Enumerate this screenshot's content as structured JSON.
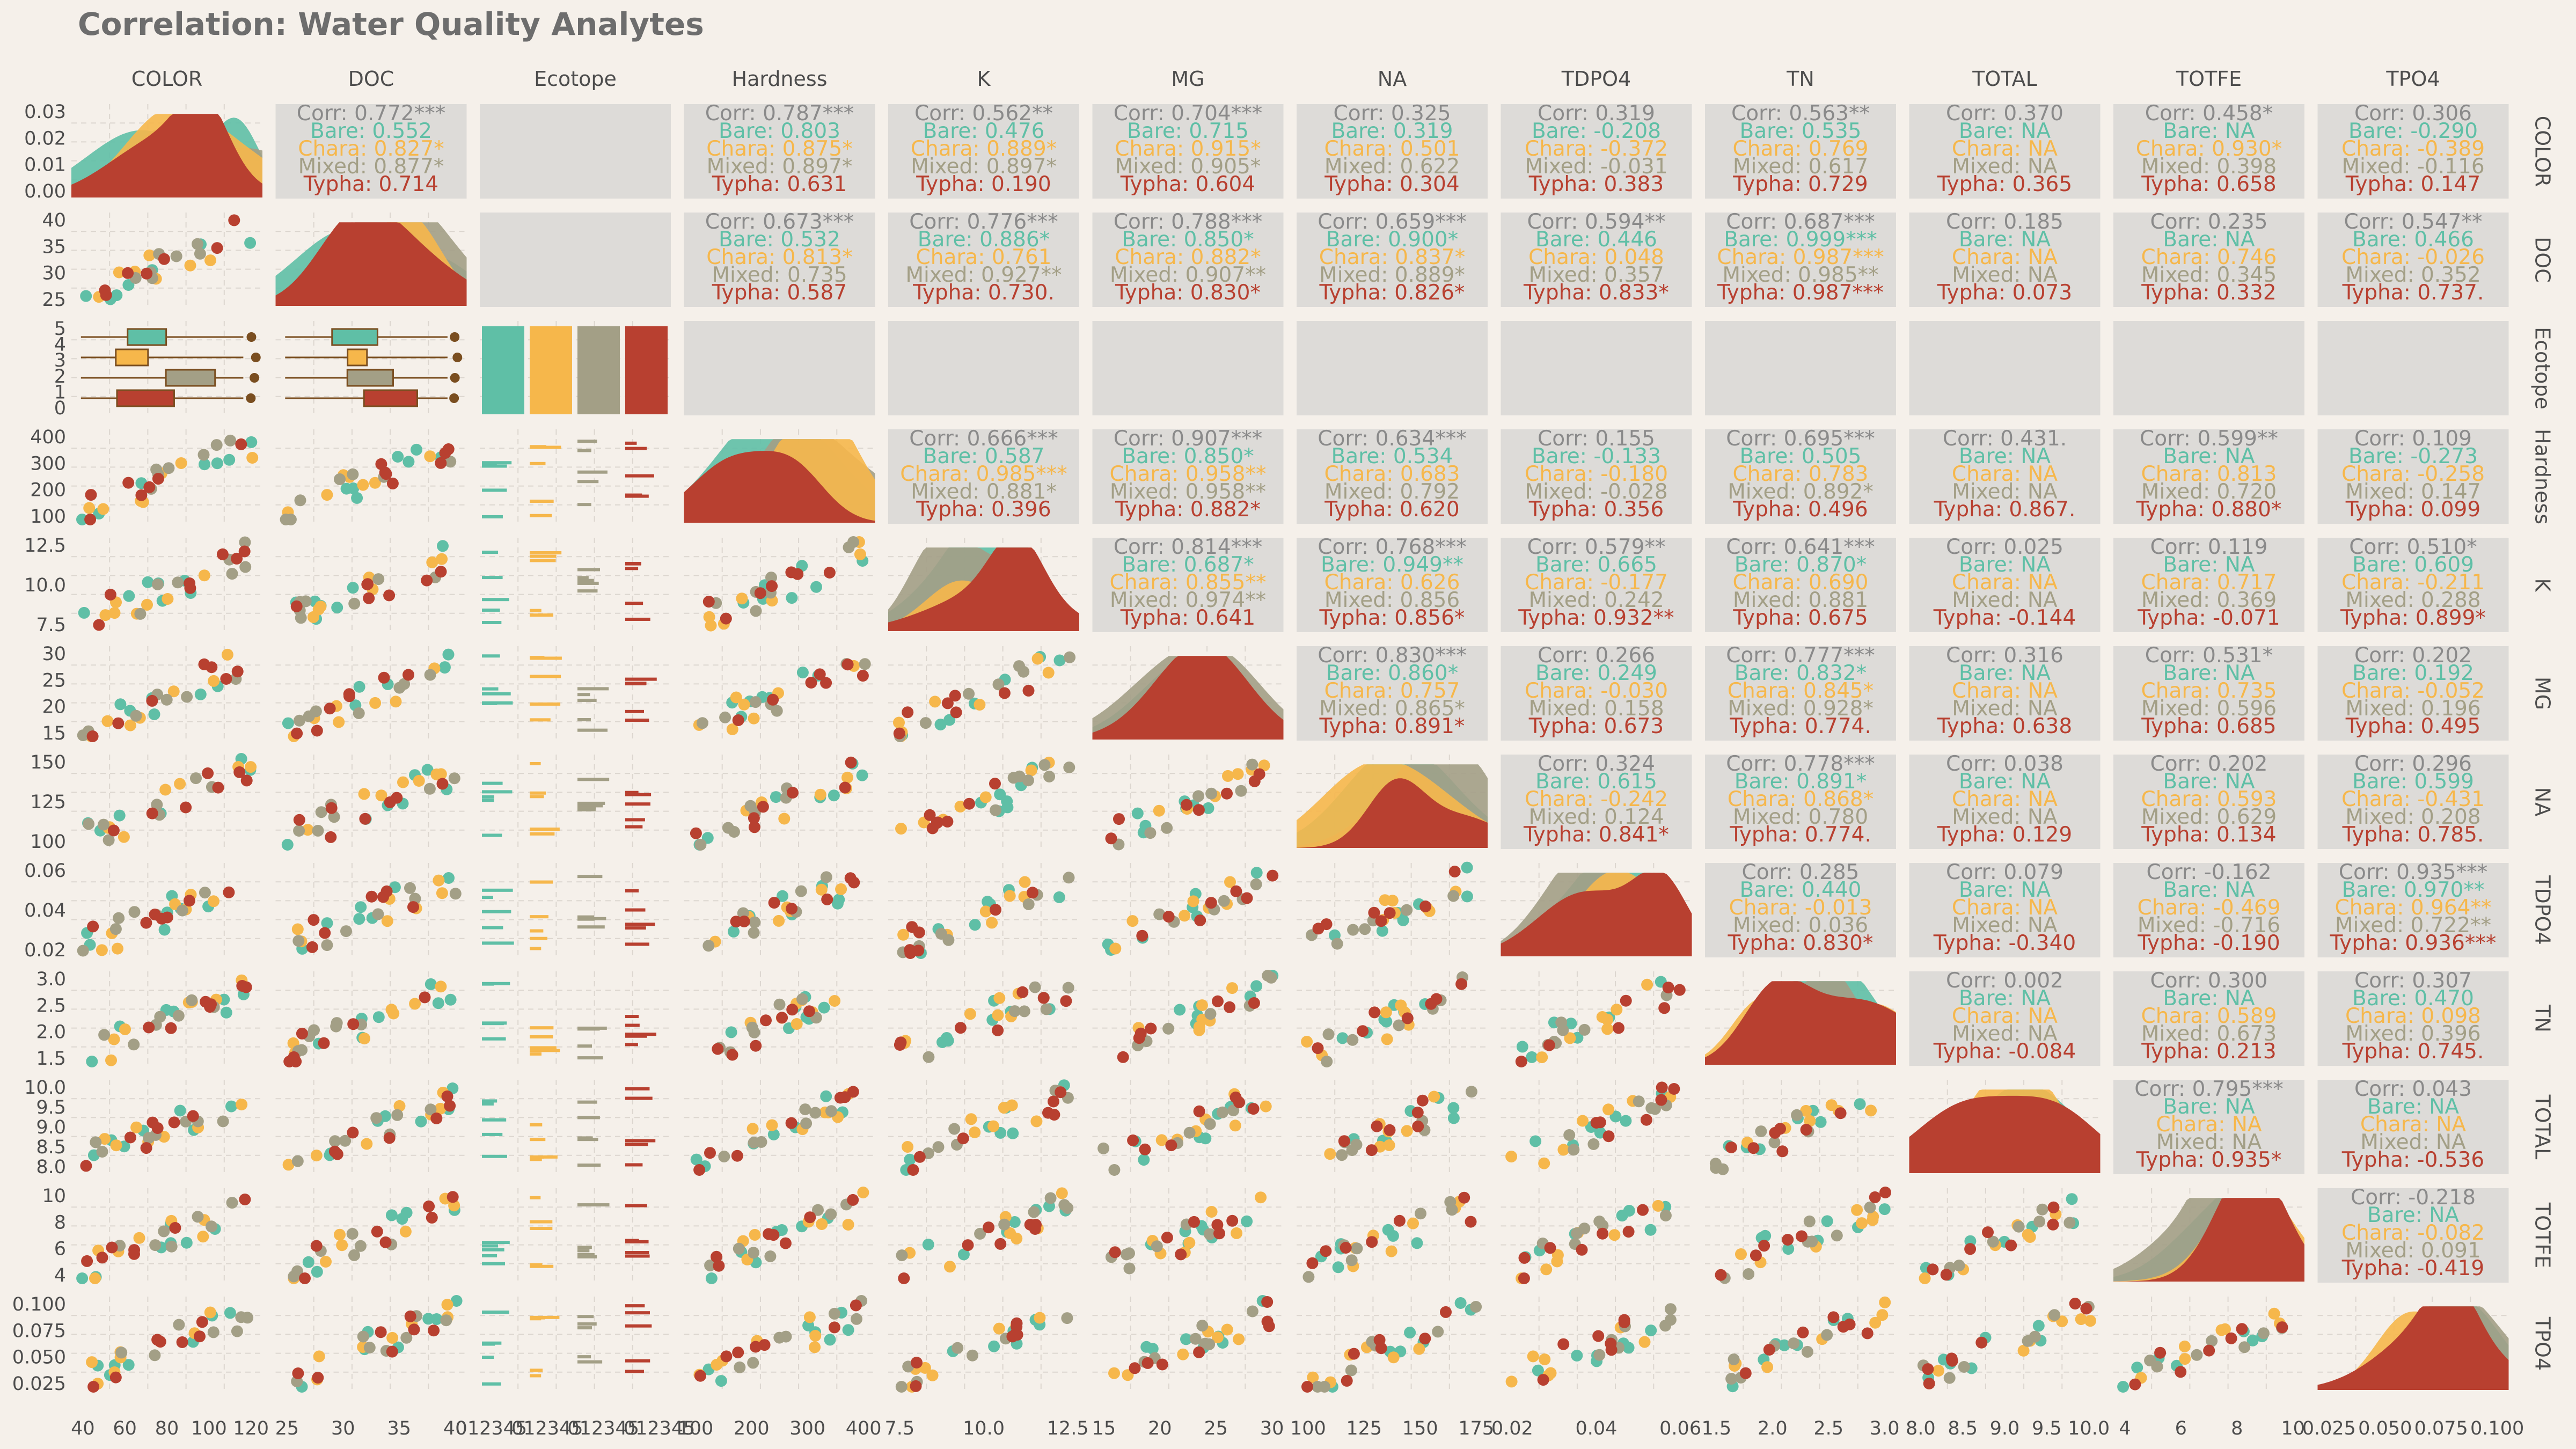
{
  "colors": {
    "background": "#f5f0ea",
    "Bare": "#5fbfa6",
    "Chara": "#f6b74b",
    "Mixed": "#a39f86",
    "Typha": "#b84030",
    "corr": "#8a8a8a",
    "box_line": "#7a4e20"
  },
  "chart_data": {
    "type": "scatter",
    "title": "Correlation: Water Quality Analytes",
    "groups": [
      "Bare",
      "Chara",
      "Mixed",
      "Typha"
    ],
    "variables": [
      "COLOR",
      "DOC",
      "Ecotope",
      "Hardness",
      "K",
      "MG",
      "NA",
      "TDPO4",
      "TN",
      "TOTAL",
      "TOTFE",
      "TPO4"
    ],
    "ticks": {
      "COLOR_x": [
        "40",
        "60",
        "80",
        "100",
        "120"
      ],
      "COLOR_y": [
        "0.03",
        "0.02",
        "0.01",
        "0.00"
      ],
      "DOC": [
        "25",
        "30",
        "35",
        "40"
      ],
      "Ecotope_x": [
        "012345",
        "012345",
        "012345",
        "012345"
      ],
      "Ecotope_y": [
        "5",
        "4",
        "3",
        "2",
        "1",
        "0"
      ],
      "Hardness_x": [
        "100",
        "200",
        "300",
        "400"
      ],
      "Hardness_y": [
        "400",
        "300",
        "200",
        "100"
      ],
      "K_x": [
        "7.5",
        "10.0",
        "12.5"
      ],
      "K_y": [
        "12.5",
        "10.0",
        "7.5"
      ],
      "MG_x": [
        "15",
        "20",
        "25",
        "30"
      ],
      "MG_y": [
        "30",
        "25",
        "20",
        "15"
      ],
      "NA_x": [
        "100",
        "125",
        "150",
        "175"
      ],
      "NA_y": [
        "150",
        "125",
        "100"
      ],
      "TDPO4_x": [
        "0.02",
        "0.04",
        "0.06"
      ],
      "TDPO4_y": [
        "0.06",
        "0.04",
        "0.02"
      ],
      "TN_x": [
        "1.5",
        "2.0",
        "2.5",
        "3.0"
      ],
      "TN_y": [
        "3.0",
        "2.5",
        "2.0",
        "1.5"
      ],
      "TOTAL_x": [
        "8.0",
        "8.5",
        "9.0",
        "9.5",
        "10.0"
      ],
      "TOTAL_y": [
        "10.0",
        "9.5",
        "9.0",
        "8.5",
        "8.0"
      ],
      "TOTFE_x": [
        "4",
        "6",
        "8",
        "10"
      ],
      "TOTFE_y": [
        "10",
        "8",
        "6",
        "4"
      ],
      "TPO4_x": [
        "0.025",
        "0.050",
        "0.075",
        "0.100"
      ],
      "TPO4_y": [
        "0.100",
        "0.075",
        "0.050",
        "0.025"
      ]
    },
    "correlations": [
      {
        "pair": "COLOR-DOC",
        "lines": [
          "Corr: 0.772***",
          "Bare: 0.552",
          "Chara: 0.827*",
          "Mixed: 0.877*",
          "Typha: 0.714"
        ]
      },
      {
        "pair": "COLOR-Hardness",
        "lines": [
          "Corr: 0.787***",
          "Bare: 0.803",
          "Chara: 0.875*",
          "Mixed: 0.897*",
          "Typha: 0.631"
        ]
      },
      {
        "pair": "COLOR-K",
        "lines": [
          "Corr: 0.562**",
          "Bare: 0.476",
          "Chara: 0.889*",
          "Mixed: 0.897*",
          "Typha: 0.190"
        ]
      },
      {
        "pair": "COLOR-MG",
        "lines": [
          "Corr: 0.704***",
          "Bare: 0.715",
          "Chara: 0.915*",
          "Mixed: 0.905*",
          "Typha: 0.604"
        ]
      },
      {
        "pair": "COLOR-NA",
        "lines": [
          "Corr: 0.325",
          "Bare: 0.319",
          "Chara: 0.501",
          "Mixed: 0.622",
          "Typha: 0.304"
        ]
      },
      {
        "pair": "COLOR-TDPO4",
        "lines": [
          "Corr: 0.319",
          "Bare: -0.208",
          "Chara: -0.372",
          "Mixed: -0.031",
          "Typha: 0.383"
        ]
      },
      {
        "pair": "COLOR-TN",
        "lines": [
          "Corr: 0.563**",
          "Bare: 0.535",
          "Chara: 0.769",
          "Mixed: 0.617",
          "Typha: 0.729"
        ]
      },
      {
        "pair": "COLOR-TOTAL",
        "lines": [
          "Corr: 0.370",
          "Bare: NA",
          "Chara: NA",
          "Mixed: NA",
          "Typha: 0.365"
        ]
      },
      {
        "pair": "COLOR-TOTFE",
        "lines": [
          "Corr: 0.458*",
          "Bare: NA",
          "Chara: 0.930*",
          "Mixed: 0.398",
          "Typha: 0.658"
        ]
      },
      {
        "pair": "COLOR-TPO4",
        "lines": [
          "Corr: 0.306",
          "Bare: -0.290",
          "Chara: -0.389",
          "Mixed: -0.116",
          "Typha: 0.147"
        ]
      },
      {
        "pair": "DOC-Hardness",
        "lines": [
          "Corr: 0.673***",
          "Bare: 0.532",
          "Chara: 0.813*",
          "Mixed: 0.735",
          "Typha: 0.587"
        ]
      },
      {
        "pair": "DOC-K",
        "lines": [
          "Corr: 0.776***",
          "Bare: 0.886*",
          "Chara: 0.761",
          "Mixed: 0.927**",
          "Typha: 0.730."
        ]
      },
      {
        "pair": "DOC-MG",
        "lines": [
          "Corr: 0.788***",
          "Bare: 0.850*",
          "Chara: 0.882*",
          "Mixed: 0.907**",
          "Typha: 0.830*"
        ]
      },
      {
        "pair": "DOC-NA",
        "lines": [
          "Corr: 0.659***",
          "Bare: 0.900*",
          "Chara: 0.837*",
          "Mixed: 0.889*",
          "Typha: 0.826*"
        ]
      },
      {
        "pair": "DOC-TDPO4",
        "lines": [
          "Corr: 0.594**",
          "Bare: 0.446",
          "Chara: 0.048",
          "Mixed: 0.357",
          "Typha: 0.833*"
        ]
      },
      {
        "pair": "DOC-TN",
        "lines": [
          "Corr: 0.687***",
          "Bare: 0.999***",
          "Chara: 0.987***",
          "Mixed: 0.985**",
          "Typha: 0.987***"
        ]
      },
      {
        "pair": "DOC-TOTAL",
        "lines": [
          "Corr: 0.185",
          "Bare: NA",
          "Chara: NA",
          "Mixed: NA",
          "Typha: 0.073"
        ]
      },
      {
        "pair": "DOC-TOTFE",
        "lines": [
          "Corr: 0.235",
          "Bare: NA",
          "Chara: 0.746",
          "Mixed: 0.345",
          "Typha: 0.332"
        ]
      },
      {
        "pair": "DOC-TPO4",
        "lines": [
          "Corr: 0.547**",
          "Bare: 0.466",
          "Chara: -0.026",
          "Mixed: 0.352",
          "Typha: 0.737."
        ]
      },
      {
        "pair": "Hardness-K",
        "lines": [
          "Corr: 0.666***",
          "Bare: 0.587",
          "Chara: 0.985***",
          "Mixed: 0.881*",
          "Typha: 0.396"
        ]
      },
      {
        "pair": "Hardness-MG",
        "lines": [
          "Corr: 0.907***",
          "Bare: 0.850*",
          "Chara: 0.958**",
          "Mixed: 0.958**",
          "Typha: 0.882*"
        ]
      },
      {
        "pair": "Hardness-NA",
        "lines": [
          "Corr: 0.634***",
          "Bare: 0.534",
          "Chara: 0.683",
          "Mixed: 0.792",
          "Typha: 0.620"
        ]
      },
      {
        "pair": "Hardness-TDPO4",
        "lines": [
          "Corr: 0.155",
          "Bare: -0.133",
          "Chara: -0.180",
          "Mixed: -0.028",
          "Typha: 0.356"
        ]
      },
      {
        "pair": "Hardness-TN",
        "lines": [
          "Corr: 0.695***",
          "Bare: 0.505",
          "Chara: 0.783",
          "Mixed: 0.892*",
          "Typha: 0.496"
        ]
      },
      {
        "pair": "Hardness-TOTAL",
        "lines": [
          "Corr: 0.431.",
          "Bare: NA",
          "Chara: NA",
          "Mixed: NA",
          "Typha: 0.867."
        ]
      },
      {
        "pair": "Hardness-TOTFE",
        "lines": [
          "Corr: 0.599**",
          "Bare: NA",
          "Chara: 0.813",
          "Mixed: 0.720",
          "Typha: 0.880*"
        ]
      },
      {
        "pair": "Hardness-TPO4",
        "lines": [
          "Corr: 0.109",
          "Bare: -0.273",
          "Chara: -0.258",
          "Mixed: 0.147",
          "Typha: 0.099"
        ]
      },
      {
        "pair": "K-MG",
        "lines": [
          "Corr: 0.814***",
          "Bare: 0.687*",
          "Chara: 0.855**",
          "Mixed: 0.974**",
          "Typha: 0.641"
        ]
      },
      {
        "pair": "K-NA",
        "lines": [
          "Corr: 0.768***",
          "Bare: 0.949**",
          "Chara: 0.626",
          "Mixed: 0.856",
          "Typha: 0.856*"
        ]
      },
      {
        "pair": "K-TDPO4",
        "lines": [
          "Corr: 0.579**",
          "Bare: 0.665",
          "Chara: -0.177",
          "Mixed: 0.242",
          "Typha: 0.932**"
        ]
      },
      {
        "pair": "K-TN",
        "lines": [
          "Corr: 0.641***",
          "Bare: 0.870*",
          "Chara: 0.690",
          "Mixed: 0.881",
          "Typha: 0.675"
        ]
      },
      {
        "pair": "K-TOTAL",
        "lines": [
          "Corr: 0.025",
          "Bare: NA",
          "Chara: NA",
          "Mixed: NA",
          "Typha: -0.144"
        ]
      },
      {
        "pair": "K-TOTFE",
        "lines": [
          "Corr: 0.119",
          "Bare: NA",
          "Chara: 0.717",
          "Mixed: 0.369",
          "Typha: -0.071"
        ]
      },
      {
        "pair": "K-TPO4",
        "lines": [
          "Corr: 0.510*",
          "Bare: 0.609",
          "Chara: -0.211",
          "Mixed: 0.288",
          "Typha: 0.899*"
        ]
      },
      {
        "pair": "MG-NA",
        "lines": [
          "Corr: 0.830***",
          "Bare: 0.860*",
          "Chara: 0.757",
          "Mixed: 0.865*",
          "Typha: 0.891*"
        ]
      },
      {
        "pair": "MG-TDPO4",
        "lines": [
          "Corr: 0.266",
          "Bare: 0.249",
          "Chara: -0.030",
          "Mixed: 0.158",
          "Typha: 0.673"
        ]
      },
      {
        "pair": "MG-TN",
        "lines": [
          "Corr: 0.777***",
          "Bare: 0.832*",
          "Chara: 0.845*",
          "Mixed: 0.928*",
          "Typha: 0.774."
        ]
      },
      {
        "pair": "MG-TOTAL",
        "lines": [
          "Corr: 0.316",
          "Bare: NA",
          "Chara: NA",
          "Mixed: NA",
          "Typha: 0.638"
        ]
      },
      {
        "pair": "MG-TOTFE",
        "lines": [
          "Corr: 0.531*",
          "Bare: NA",
          "Chara: 0.735",
          "Mixed: 0.596",
          "Typha: 0.685"
        ]
      },
      {
        "pair": "MG-TPO4",
        "lines": [
          "Corr: 0.202",
          "Bare: 0.192",
          "Chara: -0.052",
          "Mixed: 0.196",
          "Typha: 0.495"
        ]
      },
      {
        "pair": "NA-TDPO4",
        "lines": [
          "Corr: 0.324",
          "Bare: 0.615",
          "Chara: -0.242",
          "Mixed: 0.124",
          "Typha: 0.841*"
        ]
      },
      {
        "pair": "NA-TN",
        "lines": [
          "Corr: 0.778***",
          "Bare: 0.891*",
          "Chara: 0.868*",
          "Mixed: 0.780",
          "Typha: 0.774."
        ]
      },
      {
        "pair": "NA-TOTAL",
        "lines": [
          "Corr: 0.038",
          "Bare: NA",
          "Chara: NA",
          "Mixed: NA",
          "Typha: 0.129"
        ]
      },
      {
        "pair": "NA-TOTFE",
        "lines": [
          "Corr: 0.202",
          "Bare: NA",
          "Chara: 0.593",
          "Mixed: 0.629",
          "Typha: 0.134"
        ]
      },
      {
        "pair": "NA-TPO4",
        "lines": [
          "Corr: 0.296",
          "Bare: 0.599",
          "Chara: -0.431",
          "Mixed: 0.208",
          "Typha: 0.785."
        ]
      },
      {
        "pair": "TDPO4-TN",
        "lines": [
          "Corr: 0.285",
          "Bare: 0.440",
          "Chara: -0.013",
          "Mixed: 0.036",
          "Typha: 0.830*"
        ]
      },
      {
        "pair": "TDPO4-TOTAL",
        "lines": [
          "Corr: 0.079",
          "Bare: NA",
          "Chara: NA",
          "Mixed: NA",
          "Typha: -0.340"
        ]
      },
      {
        "pair": "TDPO4-TOTFE",
        "lines": [
          "Corr: -0.162",
          "Bare: NA",
          "Chara: -0.469",
          "Mixed: -0.716",
          "Typha: -0.190"
        ]
      },
      {
        "pair": "TDPO4-TPO4",
        "lines": [
          "Corr: 0.935***",
          "Bare: 0.970**",
          "Chara: 0.964**",
          "Mixed: 0.722**",
          "Typha: 0.936***"
        ]
      },
      {
        "pair": "TN-TOTAL",
        "lines": [
          "Corr: 0.002",
          "Bare: NA",
          "Chara: NA",
          "Mixed: NA",
          "Typha: -0.084"
        ]
      },
      {
        "pair": "TN-TOTFE",
        "lines": [
          "Corr: 0.300",
          "Bare: NA",
          "Chara: 0.589",
          "Mixed: 0.673",
          "Typha: 0.213"
        ]
      },
      {
        "pair": "TN-TPO4",
        "lines": [
          "Corr: 0.307",
          "Bare: 0.470",
          "Chara: 0.098",
          "Mixed: 0.396",
          "Typha: 0.745."
        ]
      },
      {
        "pair": "TOTAL-TOTFE",
        "lines": [
          "Corr: 0.795***",
          "Bare: NA",
          "Chara: NA",
          "Mixed: NA",
          "Typha: 0.935*"
        ]
      },
      {
        "pair": "TOTAL-TPO4",
        "lines": [
          "Corr: 0.043",
          "Bare: NA",
          "Chara: NA",
          "Mixed: NA",
          "Typha: -0.536"
        ]
      },
      {
        "pair": "TOTFE-TPO4",
        "lines": [
          "Corr: -0.218",
          "Bare: NA",
          "Chara: -0.082",
          "Mixed: 0.091",
          "Typha: -0.419"
        ]
      }
    ]
  }
}
